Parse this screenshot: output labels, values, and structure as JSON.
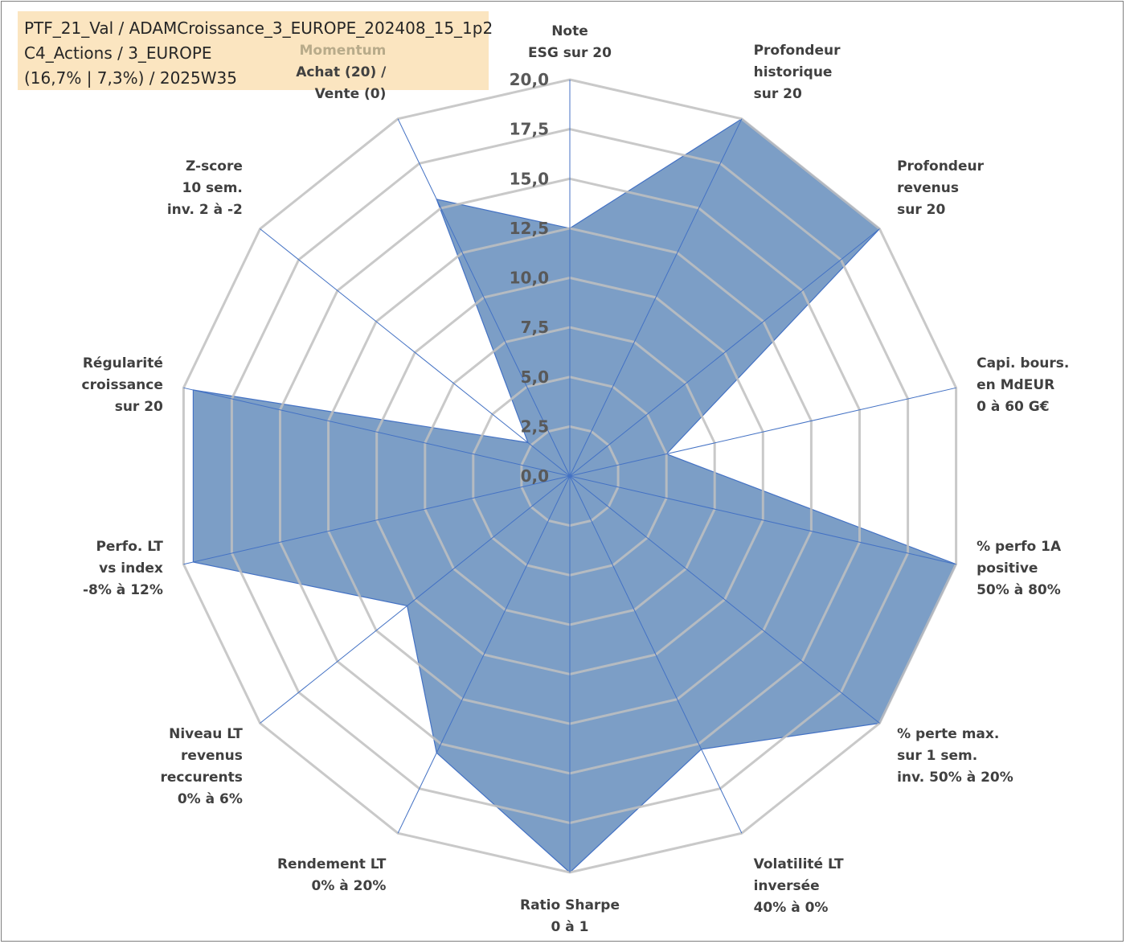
{
  "header": {
    "line1": "PTF_21_Val / ADAMCroissance_3_EUROPE_202408_15_1p2",
    "line2": "C4_Actions / 3_EUROPE",
    "line3": "(16,7% | 7,3%) / 2025W35"
  },
  "colors": {
    "fill": "#4a78b0",
    "stroke": "#4472c4",
    "grid": "#bfbfbf",
    "header_bg": "#fbe5c0",
    "highlight_label": "#b8ab8a"
  },
  "chart_data": {
    "type": "radar",
    "rmin": 0,
    "rmax": 20,
    "ticks": [
      "0,0",
      "2,5",
      "5,0",
      "7,5",
      "10,0",
      "12,5",
      "15,0",
      "17,5",
      "20,0"
    ],
    "axes": [
      {
        "label": [
          "Note",
          "ESG sur 20"
        ],
        "value": 12.5
      },
      {
        "label": [
          "Profondeur",
          "historique",
          "sur 20"
        ],
        "value": 20
      },
      {
        "label": [
          "Profondeur",
          "revenus",
          "sur 20"
        ],
        "value": 20
      },
      {
        "label": [
          "Capi. bours.",
          "en MdEUR",
          "0 à 60 G€"
        ],
        "value": 5.0
      },
      {
        "label": [
          "% perfo 1A",
          "positive",
          "50% à 80%"
        ],
        "value": 20
      },
      {
        "label": [
          "% perte max.",
          "sur 1 sem.",
          "inv. 50% à 20%"
        ],
        "value": 20
      },
      {
        "label": [
          "Volatilité LT",
          "inversée",
          "40% à 0%"
        ],
        "value": 15.3
      },
      {
        "label": [
          "Ratio Sharpe",
          "0 à 1"
        ],
        "value": 20
      },
      {
        "label": [
          "Rendement LT",
          "0% à 20%"
        ],
        "value": 15.5
      },
      {
        "label": [
          "Niveau LT",
          "revenus",
          "reccurents",
          "0% à 6%"
        ],
        "value": 10.5
      },
      {
        "label": [
          "Perfo. LT",
          "vs index",
          "-8% à 12%"
        ],
        "value": 19.5
      },
      {
        "label": [
          "Régularité",
          "croissance",
          "sur 20"
        ],
        "value": 19.5
      },
      {
        "label": [
          "Z-score",
          "10 sem.",
          "inv. 2 à -2"
        ],
        "value": 2.7
      },
      {
        "label": [
          "Momentum",
          "Achat (20) /",
          "Vente (0)"
        ],
        "value": 15.5
      }
    ]
  }
}
